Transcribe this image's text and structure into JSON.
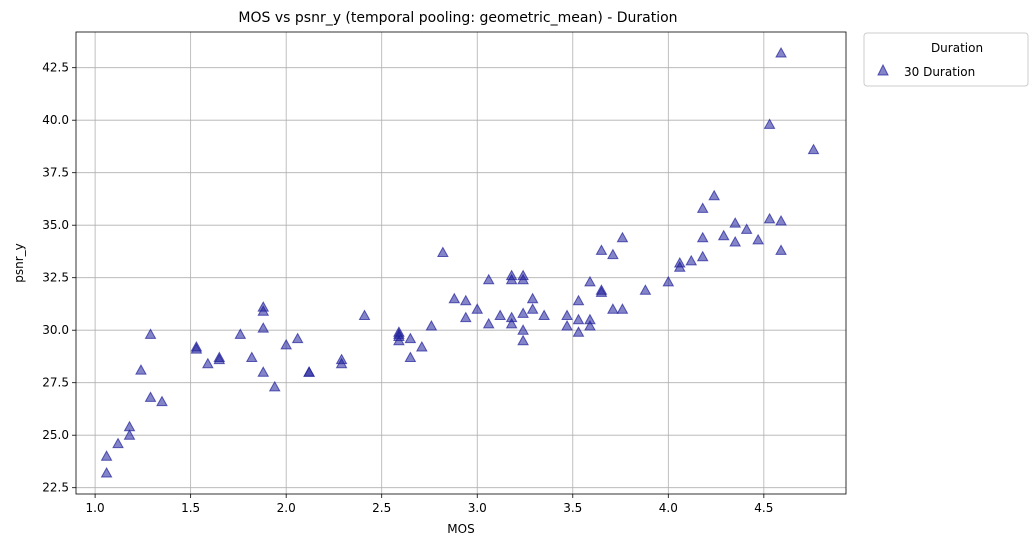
{
  "chart_data": {
    "type": "scatter",
    "title": "MOS vs psnr_y (temporal pooling: geometric_mean) - Duration",
    "xlabel": "MOS",
    "ylabel": "psnr_y",
    "xlim": [
      0.9,
      4.93
    ],
    "ylim": [
      22.2,
      44.2
    ],
    "xticks": [
      1.0,
      1.5,
      2.0,
      2.5,
      3.0,
      3.5,
      4.0,
      4.5
    ],
    "xtick_labels": [
      "1.0",
      "1.5",
      "2.0",
      "2.5",
      "3.0",
      "3.5",
      "4.0",
      "4.5"
    ],
    "yticks": [
      22.5,
      25.0,
      27.5,
      30.0,
      32.5,
      35.0,
      37.5,
      40.0,
      42.5
    ],
    "ytick_labels": [
      "22.5",
      "25.0",
      "27.5",
      "30.0",
      "32.5",
      "35.0",
      "37.5",
      "40.0",
      "42.5"
    ],
    "grid": true,
    "legend": {
      "title": "Duration",
      "placement": "outside-top-right"
    },
    "series": [
      {
        "name": "30 Duration",
        "marker": "triangle",
        "color": "#1f1f9a",
        "points": [
          [
            1.06,
            24.0
          ],
          [
            1.06,
            23.2
          ],
          [
            1.12,
            24.6
          ],
          [
            1.18,
            25.0
          ],
          [
            1.18,
            25.4
          ],
          [
            1.24,
            28.1
          ],
          [
            1.29,
            29.8
          ],
          [
            1.29,
            26.8
          ],
          [
            1.35,
            26.6
          ],
          [
            1.53,
            29.1
          ],
          [
            1.53,
            29.2
          ],
          [
            1.59,
            28.4
          ],
          [
            1.65,
            28.7
          ],
          [
            1.65,
            28.6
          ],
          [
            1.76,
            29.8
          ],
          [
            1.82,
            28.7
          ],
          [
            1.88,
            31.1
          ],
          [
            1.88,
            30.9
          ],
          [
            1.88,
            30.1
          ],
          [
            1.88,
            28.0
          ],
          [
            1.94,
            27.3
          ],
          [
            2.0,
            29.3
          ],
          [
            2.06,
            29.6
          ],
          [
            2.12,
            28.0
          ],
          [
            2.12,
            28.0
          ],
          [
            2.29,
            28.4
          ],
          [
            2.29,
            28.6
          ],
          [
            2.41,
            30.7
          ],
          [
            2.59,
            29.9
          ],
          [
            2.59,
            29.7
          ],
          [
            2.59,
            29.8
          ],
          [
            2.59,
            29.5
          ],
          [
            2.65,
            29.6
          ],
          [
            2.65,
            28.7
          ],
          [
            2.71,
            29.2
          ],
          [
            2.76,
            30.2
          ],
          [
            2.82,
            33.7
          ],
          [
            2.88,
            31.5
          ],
          [
            2.94,
            31.4
          ],
          [
            2.94,
            30.6
          ],
          [
            3.0,
            31.0
          ],
          [
            3.06,
            32.4
          ],
          [
            3.06,
            30.3
          ],
          [
            3.12,
            30.7
          ],
          [
            3.18,
            32.6
          ],
          [
            3.18,
            32.4
          ],
          [
            3.18,
            30.6
          ],
          [
            3.18,
            30.3
          ],
          [
            3.24,
            32.6
          ],
          [
            3.24,
            32.4
          ],
          [
            3.24,
            30.8
          ],
          [
            3.24,
            30.0
          ],
          [
            3.24,
            29.5
          ],
          [
            3.29,
            31.5
          ],
          [
            3.29,
            31.0
          ],
          [
            3.35,
            30.7
          ],
          [
            3.47,
            30.7
          ],
          [
            3.47,
            30.2
          ],
          [
            3.53,
            31.4
          ],
          [
            3.53,
            30.5
          ],
          [
            3.53,
            29.9
          ],
          [
            3.59,
            32.3
          ],
          [
            3.59,
            30.5
          ],
          [
            3.59,
            30.2
          ],
          [
            3.65,
            33.8
          ],
          [
            3.65,
            31.8
          ],
          [
            3.65,
            31.9
          ],
          [
            3.71,
            33.6
          ],
          [
            3.71,
            31.0
          ],
          [
            3.76,
            34.4
          ],
          [
            3.76,
            31.0
          ],
          [
            3.88,
            31.9
          ],
          [
            4.0,
            32.3
          ],
          [
            4.06,
            33.2
          ],
          [
            4.06,
            33.0
          ],
          [
            4.12,
            33.3
          ],
          [
            4.18,
            35.8
          ],
          [
            4.18,
            34.4
          ],
          [
            4.18,
            33.5
          ],
          [
            4.24,
            36.4
          ],
          [
            4.29,
            34.5
          ],
          [
            4.35,
            35.1
          ],
          [
            4.35,
            34.2
          ],
          [
            4.41,
            34.8
          ],
          [
            4.47,
            34.3
          ],
          [
            4.53,
            39.8
          ],
          [
            4.53,
            35.3
          ],
          [
            4.59,
            43.2
          ],
          [
            4.59,
            35.2
          ],
          [
            4.59,
            33.8
          ],
          [
            4.76,
            38.6
          ]
        ]
      }
    ]
  }
}
